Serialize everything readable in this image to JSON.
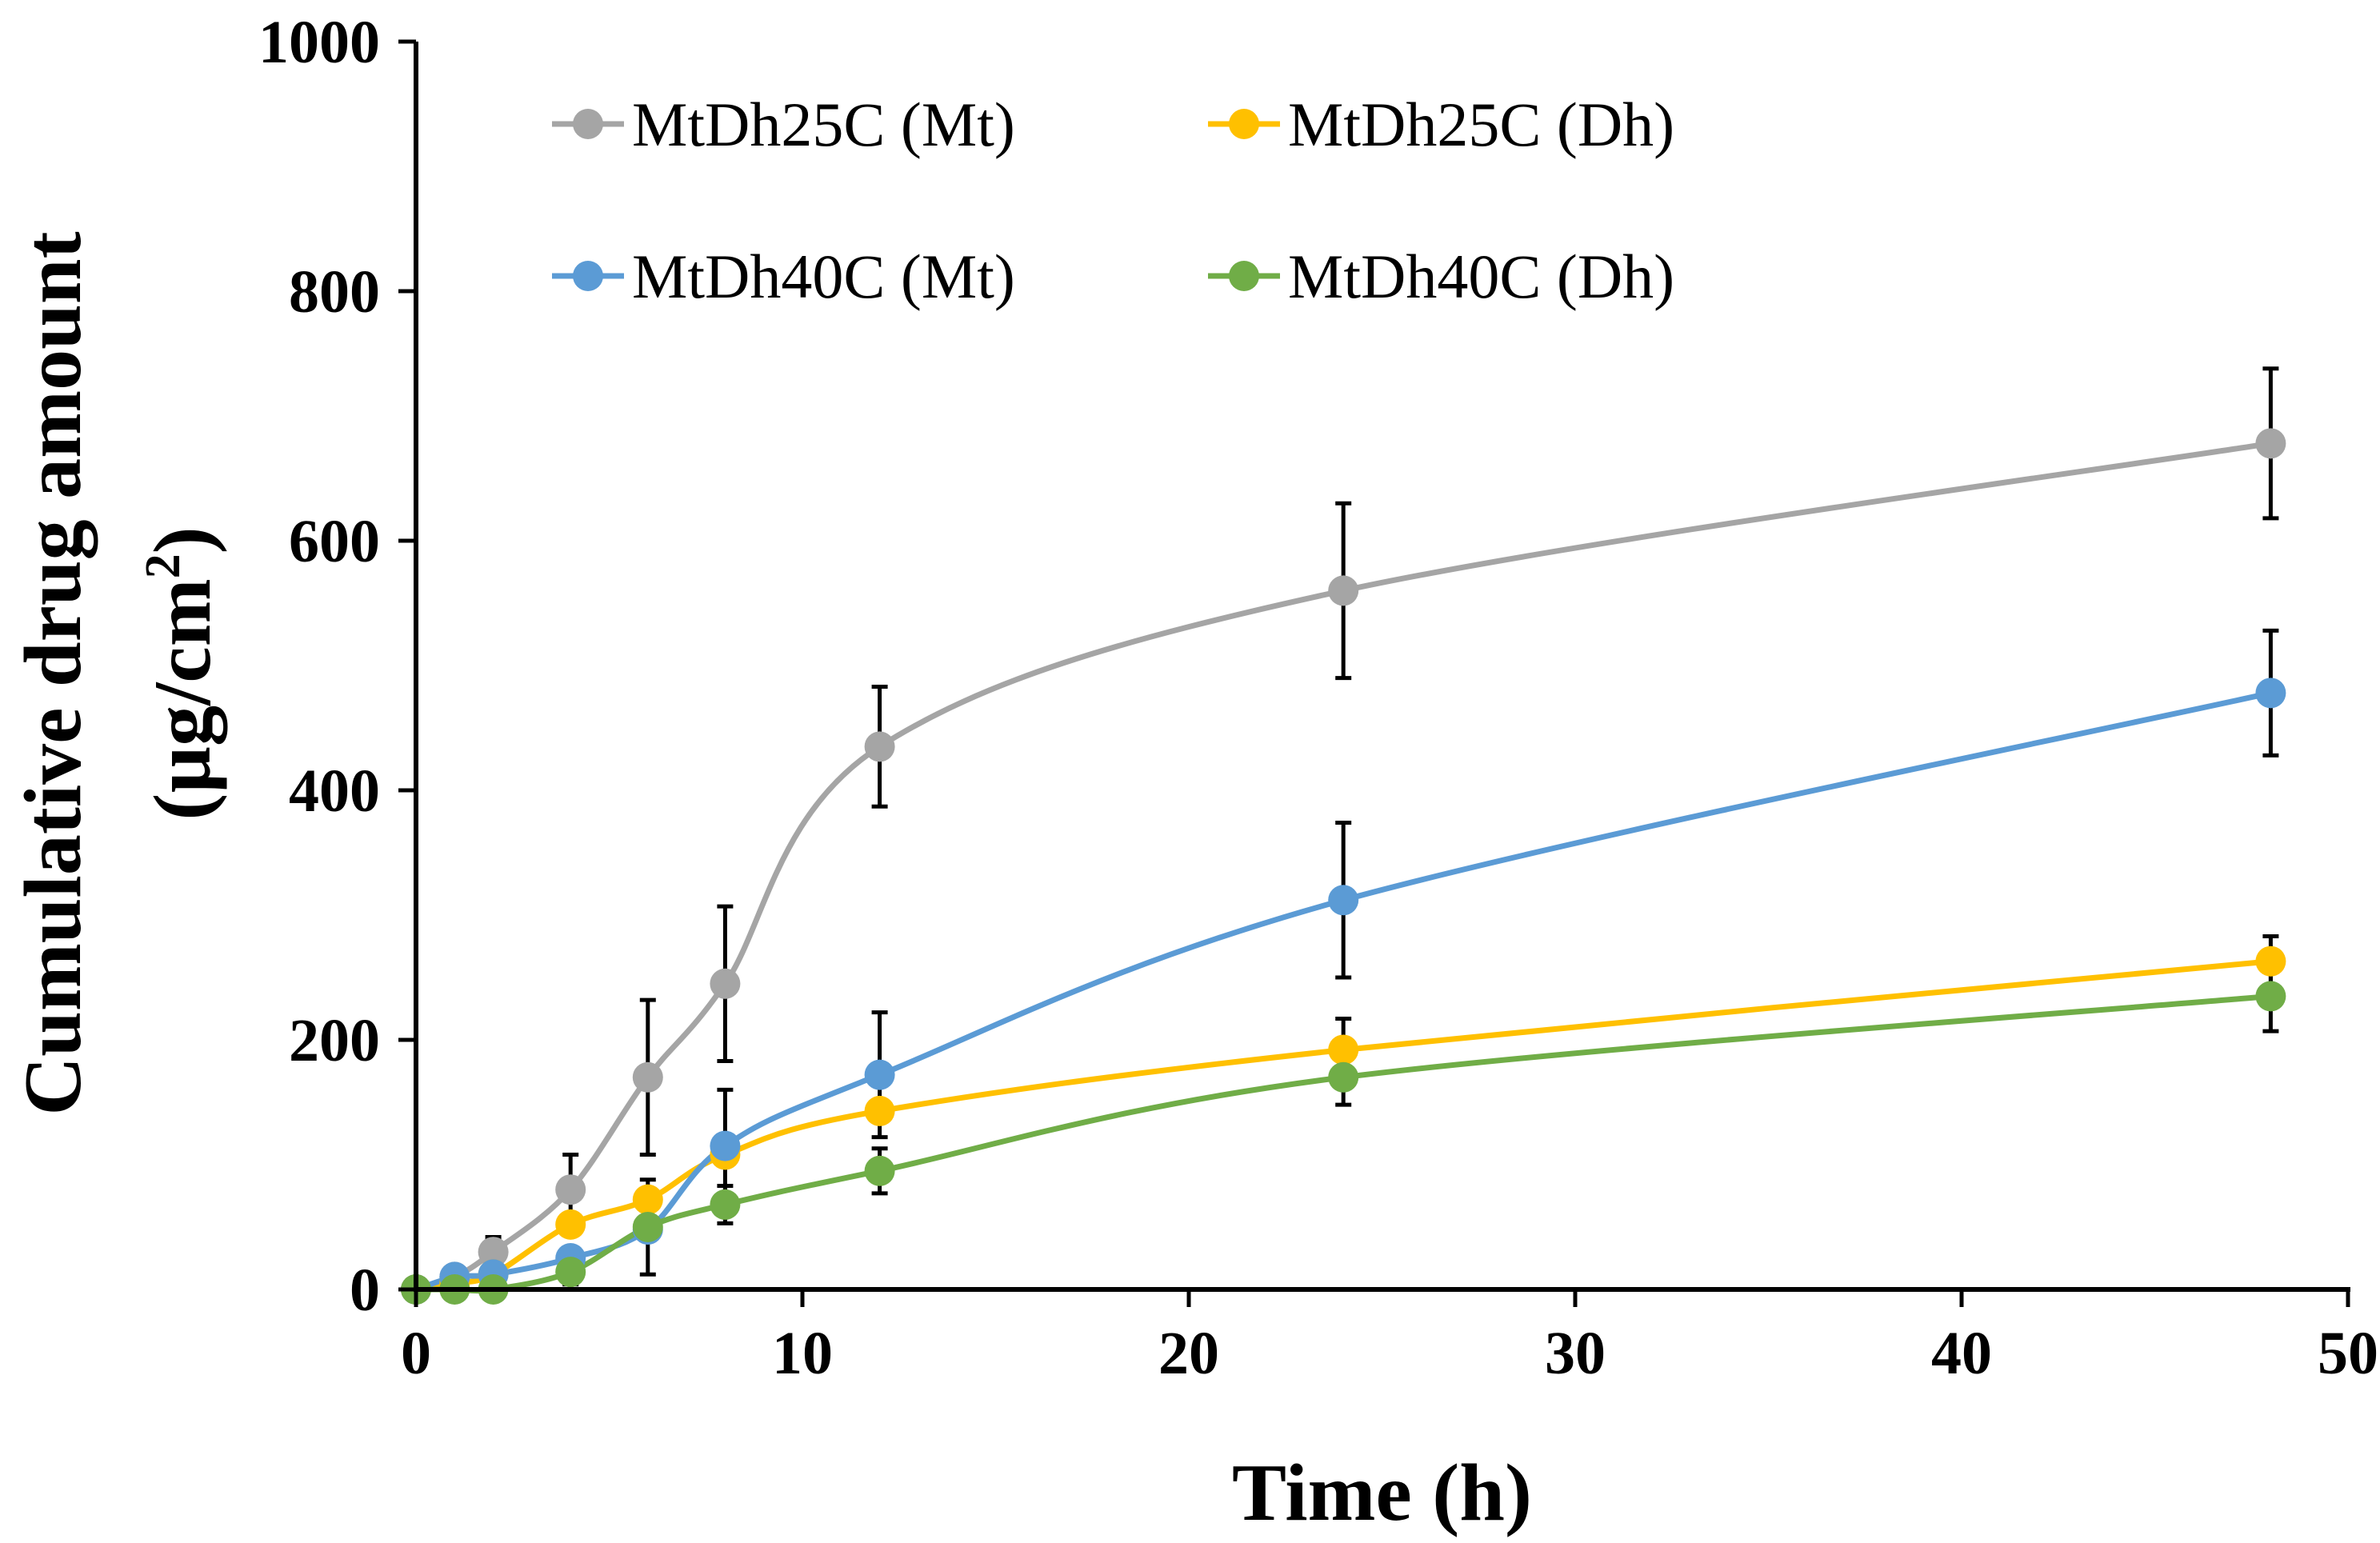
{
  "chart_data": {
    "type": "line",
    "title": "",
    "xlabel": "Time (h)",
    "ylabel_line1": "Cumulative drug amount",
    "ylabel_line2": "(µg/cm",
    "ylabel_superscript": "2",
    "ylabel_close": ")",
    "xlim": [
      0,
      50
    ],
    "ylim": [
      0,
      1000
    ],
    "x_ticks": [
      0,
      10,
      20,
      30,
      40,
      50
    ],
    "y_ticks": [
      0,
      200,
      400,
      600,
      800,
      1000
    ],
    "grid": false,
    "legend_position": "top, two columns",
    "x": [
      0,
      1,
      2,
      4,
      6,
      8,
      12,
      24,
      48
    ],
    "series": [
      {
        "name": "MtDh25C (Mt)",
        "color": "#A5A5A5",
        "values": [
          0,
          10,
          30,
          80,
          170,
          245,
          435,
          560,
          678
        ],
        "errors": [
          0,
          5,
          12,
          28,
          62,
          62,
          48,
          70,
          60
        ]
      },
      {
        "name": "MtDh25C (Dh)",
        "color": "#FFC000",
        "values": [
          0,
          5,
          12,
          52,
          72,
          108,
          143,
          192,
          263
        ],
        "errors": [
          0,
          0,
          0,
          0,
          0,
          0,
          0,
          25,
          20
        ]
      },
      {
        "name": "MtDh40C (Mt)",
        "color": "#5B9BD5",
        "values": [
          0,
          10,
          12,
          25,
          48,
          115,
          172,
          312,
          478
        ],
        "errors": [
          0,
          0,
          0,
          0,
          0,
          45,
          50,
          62,
          50
        ]
      },
      {
        "name": "MtDh40C (Dh)",
        "color": "#70AD47",
        "values": [
          0,
          0,
          0,
          14,
          50,
          68,
          95,
          170,
          235
        ],
        "errors": [
          0,
          0,
          0,
          10,
          38,
          15,
          18,
          22,
          28
        ]
      }
    ]
  }
}
